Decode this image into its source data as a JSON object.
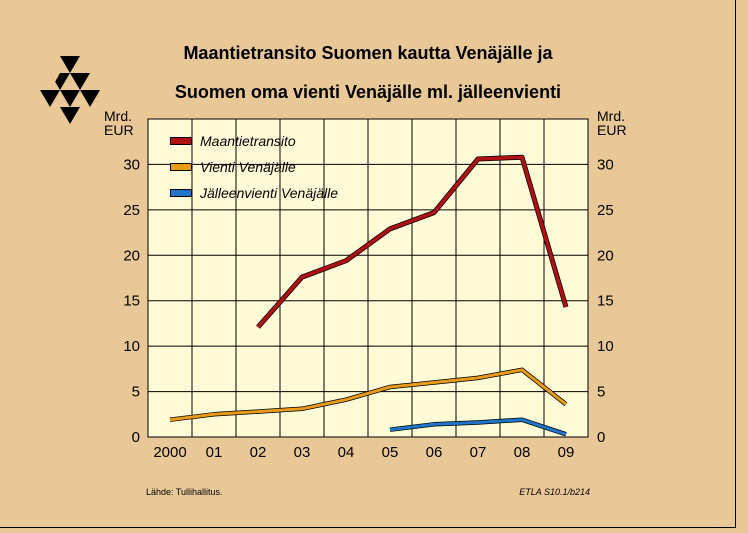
{
  "chart_data": {
    "type": "line",
    "title_lines": [
      "Maantietransito Suomen kautta Venäjälle ja",
      "Suomen oma vienti Venäjälle ml. jälleenvienti"
    ],
    "ylabel_left": [
      "Mrd.",
      "EUR"
    ],
    "ylabel_right": [
      "Mrd.",
      "EUR"
    ],
    "categories": [
      "2000",
      "01",
      "02",
      "03",
      "04",
      "05",
      "06",
      "07",
      "08",
      "09"
    ],
    "ylim": [
      0,
      35
    ],
    "yticks": [
      0,
      5,
      10,
      15,
      20,
      25,
      30
    ],
    "grid": true,
    "legend_position": "top-left",
    "series": [
      {
        "name": "Maantietransito",
        "color": "#b01010",
        "values": [
          null,
          null,
          12.1,
          17.6,
          19.4,
          22.9,
          24.7,
          30.6,
          30.8,
          14.3
        ]
      },
      {
        "name": "Vienti Venäjälle",
        "color": "#e89a18",
        "values": [
          1.9,
          2.5,
          2.8,
          3.1,
          4.1,
          5.5,
          6.0,
          6.5,
          7.4,
          3.6
        ]
      },
      {
        "name": "Jälleenvienti Venäjälle",
        "color": "#1f74c8",
        "values": [
          null,
          null,
          null,
          null,
          null,
          0.8,
          1.4,
          1.6,
          1.9,
          0.3
        ]
      }
    ],
    "source": "Lähde:   Tullihallitus.",
    "code": "ETLA S10.1/b214"
  }
}
